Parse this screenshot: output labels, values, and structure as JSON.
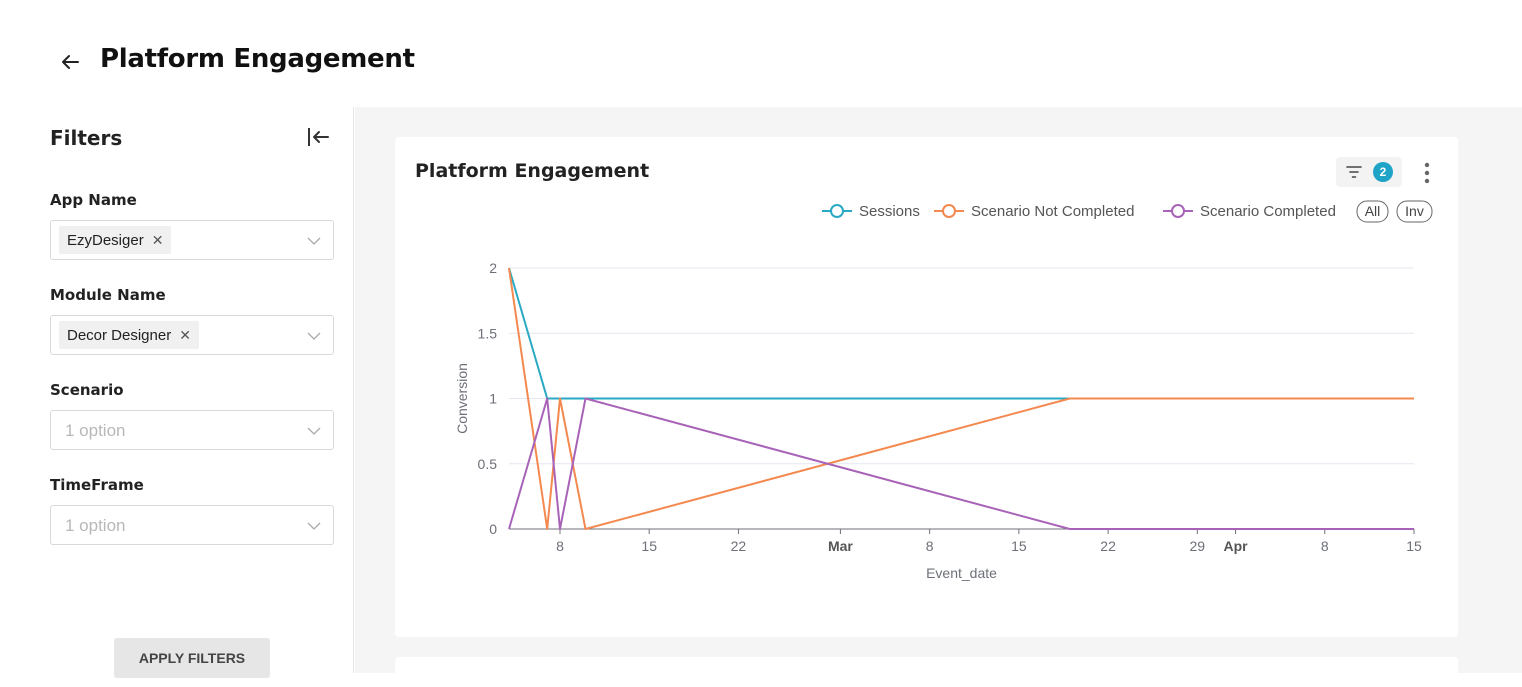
{
  "header": {
    "title": "Platform Engagement"
  },
  "sidebar": {
    "title": "Filters",
    "fields": [
      {
        "label": "App Name",
        "chip": "EzyDesiger"
      },
      {
        "label": "Module Name",
        "chip": "Decor Designer"
      },
      {
        "label": "Scenario",
        "placeholder": "1 option"
      },
      {
        "label": "TimeFrame",
        "placeholder": "1 option"
      }
    ],
    "apply_label": "APPLY FILTERS"
  },
  "card": {
    "title": "Platform Engagement",
    "filter_count": "2",
    "legend_all": "All",
    "legend_inv": "Inv"
  },
  "chart_data": {
    "type": "line",
    "xlabel": "Event_date",
    "ylabel": "Conversion",
    "ylim": [
      0,
      2
    ],
    "yticks": [
      "0",
      "0.5",
      "1",
      "1.5",
      "2"
    ],
    "xlim": [
      "2024-02-04",
      "2024-04-15"
    ],
    "xticks": [
      {
        "date": "2024-02-08",
        "label": "8",
        "bold": false
      },
      {
        "date": "2024-02-15",
        "label": "15",
        "bold": false
      },
      {
        "date": "2024-02-22",
        "label": "22",
        "bold": false
      },
      {
        "date": "2024-03-01",
        "label": "Mar",
        "bold": true
      },
      {
        "date": "2024-03-08",
        "label": "8",
        "bold": false
      },
      {
        "date": "2024-03-15",
        "label": "15",
        "bold": false
      },
      {
        "date": "2024-03-22",
        "label": "22",
        "bold": false
      },
      {
        "date": "2024-03-29",
        "label": "29",
        "bold": false
      },
      {
        "date": "2024-04-01",
        "label": "Apr",
        "bold": true
      },
      {
        "date": "2024-04-08",
        "label": "8",
        "bold": false
      },
      {
        "date": "2024-04-15",
        "label": "15",
        "bold": false
      }
    ],
    "legend_position": "top-right",
    "grid": true,
    "series": [
      {
        "name": "Sessions",
        "color": "#2aa9c4",
        "points": [
          [
            "2024-02-04",
            2
          ],
          [
            "2024-02-07",
            1
          ],
          [
            "2024-04-15",
            1
          ]
        ]
      },
      {
        "name": "Scenario Not Completed",
        "color": "#f4894f",
        "points": [
          [
            "2024-02-04",
            2
          ],
          [
            "2024-02-07",
            0
          ],
          [
            "2024-02-08",
            1
          ],
          [
            "2024-02-10",
            0
          ],
          [
            "2024-03-19",
            1
          ],
          [
            "2024-04-15",
            1
          ]
        ]
      },
      {
        "name": "Scenario Completed",
        "color": "#a863b8",
        "points": [
          [
            "2024-02-04",
            0
          ],
          [
            "2024-02-07",
            1
          ],
          [
            "2024-02-08",
            0
          ],
          [
            "2024-02-10",
            1
          ],
          [
            "2024-03-19",
            0
          ],
          [
            "2024-04-15",
            0
          ]
        ]
      }
    ]
  }
}
